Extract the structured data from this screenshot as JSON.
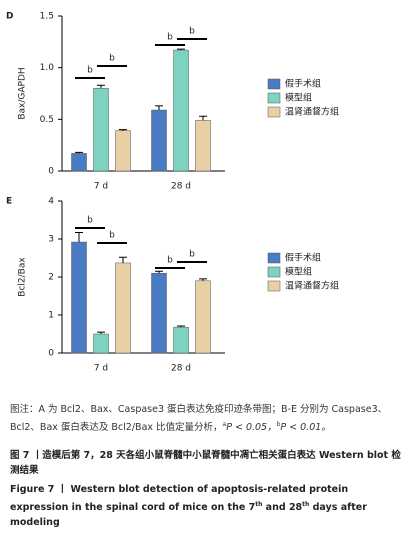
{
  "chart_data": [
    {
      "type": "bar",
      "panel": "D",
      "ylabel": "Bax/GAPDH",
      "categories": [
        "7 d",
        "28 d"
      ],
      "series": [
        {
          "name": "假手术组",
          "color": "#4a7cc4",
          "values": [
            0.17,
            0.59
          ],
          "errors": [
            0.01,
            0.04
          ]
        },
        {
          "name": "模型组",
          "color": "#7dd3c0",
          "values": [
            0.8,
            1.17
          ],
          "errors": [
            0.03,
            0.01
          ]
        },
        {
          "name": "温肾通督方组",
          "color": "#e8d0a4",
          "values": [
            0.39,
            0.49
          ],
          "errors": [
            0.01,
            0.04
          ]
        }
      ],
      "ylim": [
        0,
        1.5
      ],
      "yticks": [
        0,
        0.5,
        {
          "value": 1,
          "label": "1.0"
        },
        1.5
      ],
      "annotations": [
        "b",
        "b",
        "b",
        "b"
      ]
    },
    {
      "type": "bar",
      "panel": "E",
      "ylabel": "Bcl2/Bax",
      "categories": [
        "7 d",
        "28 d"
      ],
      "series": [
        {
          "name": "假手术组",
          "color": "#4a7cc4",
          "values": [
            2.92,
            2.1
          ],
          "errors": [
            0.25,
            0.05
          ]
        },
        {
          "name": "模型组",
          "color": "#7dd3c0",
          "values": [
            0.5,
            0.68
          ],
          "errors": [
            0.05,
            0.03
          ]
        },
        {
          "name": "温肾通督方组",
          "color": "#e8d0a4",
          "values": [
            2.37,
            1.9
          ],
          "errors": [
            0.15,
            0.05
          ]
        }
      ],
      "ylim": [
        0,
        4
      ],
      "yticks": [
        0,
        1,
        2,
        3,
        4
      ],
      "annotations": [
        "b",
        "b",
        "b",
        "b"
      ]
    }
  ],
  "note": {
    "text1": "图注：A 为 Bcl2、Bax、Caspase3 蛋白表达免疫印迹条带图；B-E 分别为 Caspase3、Bcl2、Bax 蛋白表达及 Bcl2/Bax 比值定量分析，",
    "sup_a": "a",
    "text2": "P < 0.05，",
    "sup_b": "b",
    "text3": "P < 0.01。"
  },
  "figure_title_cn": "图 7 丨造模后第 7，28 天各组小鼠脊髓中小鼠脊髓中凋亡相关蛋白表达 Western blot 检测结果",
  "figure_title_en": {
    "text1": "Figure 7 丨 Western blot detection of apoptosis-related protein expression in the spinal cord of mice on the 7",
    "sup1": "th",
    "text2": " and 28",
    "sup2": "th",
    "text3": " days after modeling"
  }
}
